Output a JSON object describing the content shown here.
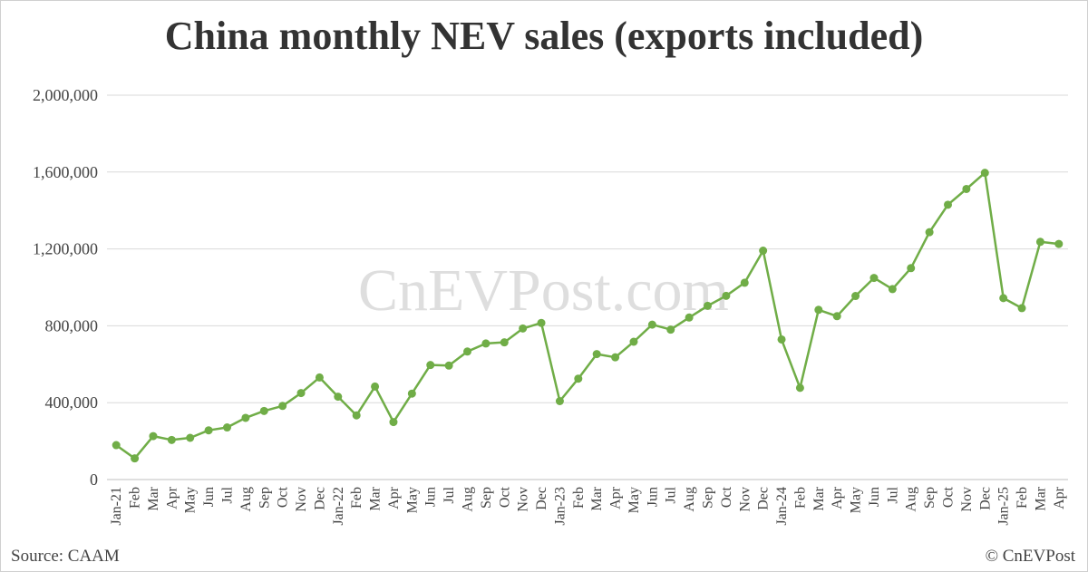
{
  "title": "China monthly NEV sales (exports included)",
  "watermark": "CnEVPost.com",
  "source": "Source: CAAM",
  "copyright": "© CnEVPost",
  "colors": {
    "line": "#70ad47",
    "grid": "#d9d9d9",
    "text": "#444444"
  },
  "chart_data": {
    "type": "line",
    "title": "China monthly NEV sales (exports included)",
    "xlabel": "",
    "ylabel": "",
    "ylim": [
      0,
      2000000
    ],
    "yticks": [
      0,
      400000,
      800000,
      1200000,
      1600000,
      2000000
    ],
    "ytick_labels": [
      "0",
      "400,000",
      "800,000",
      "1,200,000",
      "1,600,000",
      "2,000,000"
    ],
    "grid": "horizontal",
    "legend": "none",
    "categories": [
      "Jan-21",
      "Feb",
      "Mar",
      "Apr",
      "May",
      "Jun",
      "Jul",
      "Aug",
      "Sep",
      "Oct",
      "Nov",
      "Dec",
      "Jan-22",
      "Feb",
      "Mar",
      "Apr",
      "May",
      "Jun",
      "Jul",
      "Aug",
      "Sep",
      "Oct",
      "Nov",
      "Dec",
      "Jan-23",
      "Feb",
      "Mar",
      "Apr",
      "May",
      "Jun",
      "Jul",
      "Aug",
      "Sep",
      "Oct",
      "Nov",
      "Dec",
      "Jan-24",
      "Feb",
      "Mar",
      "Apr",
      "May",
      "Jun",
      "Jul",
      "Aug",
      "Sep",
      "Oct",
      "Nov",
      "Dec",
      "Jan-25",
      "Feb",
      "Mar",
      "Apr"
    ],
    "values": [
      179000,
      110000,
      226000,
      206000,
      217000,
      256000,
      271000,
      321000,
      357000,
      383000,
      450000,
      531000,
      431000,
      334000,
      484000,
      299000,
      447000,
      596000,
      593000,
      666000,
      708000,
      714000,
      786000,
      815000,
      408000,
      525000,
      653000,
      636000,
      717000,
      806000,
      780000,
      843000,
      904000,
      956000,
      1024000,
      1191000,
      729000,
      477000,
      883000,
      850000,
      955000,
      1049000,
      991000,
      1100000,
      1287000,
      1430000,
      1512000,
      1596000,
      944000,
      892000,
      1237000,
      1226000
    ]
  }
}
